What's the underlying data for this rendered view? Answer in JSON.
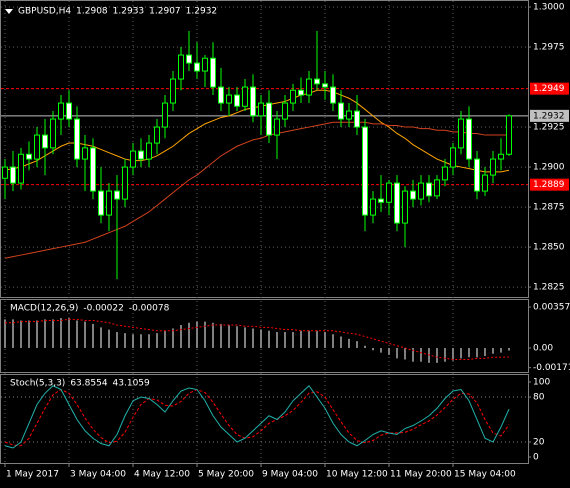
{
  "chart_data": [
    {
      "type": "candlestick",
      "title": "GBPUSD,H4",
      "grid": true,
      "categories": [
        "1 May 2017",
        null,
        null,
        null,
        null,
        null,
        null,
        null,
        "3 May 04:00",
        null,
        null,
        null,
        null,
        null,
        null,
        null,
        "4 May 12:00",
        null,
        null,
        null,
        null,
        null,
        null,
        null,
        "5 May 20:00",
        null,
        null,
        null,
        null,
        null,
        null,
        null,
        "9 May 04:00",
        null,
        null,
        null,
        null,
        null,
        null,
        null,
        "10 May 12:00",
        null,
        null,
        null,
        null,
        null,
        null,
        null,
        "11 May 20:00",
        null,
        null,
        null,
        null,
        null,
        null,
        null,
        "15 May 04:00",
        null,
        null,
        null,
        null,
        null,
        null,
        null
      ],
      "open": [
        1.2893,
        1.29,
        1.289,
        1.2908,
        1.2905,
        1.292,
        1.2912,
        1.293,
        1.294,
        1.293,
        1.2905,
        1.2912,
        1.2885,
        1.287,
        1.2885,
        1.288,
        1.29,
        1.291,
        1.2905,
        1.2915,
        1.2925,
        1.294,
        1.2955,
        1.297,
        1.2965,
        1.296,
        1.2968,
        1.295,
        1.294,
        1.2945,
        1.2938,
        1.295,
        1.2932,
        1.294,
        1.292,
        1.293,
        1.294,
        1.2948,
        1.2945,
        1.2955,
        1.2952,
        1.295,
        1.294,
        1.293,
        1.2935,
        1.2925,
        1.287,
        1.288,
        1.2878,
        1.289,
        1.2865,
        1.2885,
        1.288,
        1.289,
        1.2882,
        1.2892,
        1.29,
        1.2912,
        1.293,
        1.2905,
        1.2885,
        1.2895,
        1.2905,
        1.2908
      ],
      "high": [
        1.2905,
        1.291,
        1.2912,
        1.2916,
        1.2925,
        1.293,
        1.2935,
        1.2945,
        1.2948,
        1.2938,
        1.292,
        1.2918,
        1.29,
        1.289,
        1.2895,
        1.2905,
        1.2915,
        1.2918,
        1.292,
        1.293,
        1.2945,
        1.296,
        1.2975,
        1.2985,
        1.2978,
        1.297,
        1.2978,
        1.2962,
        1.295,
        1.295,
        1.2955,
        1.2958,
        1.2945,
        1.2948,
        1.2935,
        1.2945,
        1.2952,
        1.2956,
        1.296,
        1.2985,
        1.296,
        1.2958,
        1.2948,
        1.294,
        1.2945,
        1.293,
        1.2885,
        1.2895,
        1.2892,
        1.2895,
        1.2888,
        1.2892,
        1.2895,
        1.2895,
        1.2895,
        1.2905,
        1.2915,
        1.2935,
        1.2938,
        1.291,
        1.29,
        1.291,
        1.2918,
        1.2933
      ],
      "low": [
        1.288,
        1.2885,
        1.2886,
        1.2898,
        1.29,
        1.2895,
        1.2908,
        1.292,
        1.2925,
        1.29,
        1.2885,
        1.288,
        1.2865,
        1.286,
        1.283,
        1.2875,
        1.2895,
        1.29,
        1.29,
        1.2908,
        1.2918,
        1.2935,
        1.2948,
        1.296,
        1.2955,
        1.295,
        1.2945,
        1.2935,
        1.2932,
        1.2935,
        1.2935,
        1.2928,
        1.292,
        1.2915,
        1.2905,
        1.2925,
        1.2935,
        1.294,
        1.294,
        1.2948,
        1.2942,
        1.2935,
        1.2925,
        1.2925,
        1.292,
        1.286,
        1.2865,
        1.2872,
        1.287,
        1.286,
        1.285,
        1.2875,
        1.2876,
        1.2878,
        1.288,
        1.2888,
        1.2895,
        1.2908,
        1.29,
        1.288,
        1.2882,
        1.289,
        1.2898,
        1.2907
      ],
      "close": [
        1.29,
        1.289,
        1.2908,
        1.2905,
        1.292,
        1.2912,
        1.293,
        1.294,
        1.293,
        1.2905,
        1.2912,
        1.2885,
        1.287,
        1.2885,
        1.288,
        1.29,
        1.291,
        1.2905,
        1.2915,
        1.2925,
        1.294,
        1.2955,
        1.297,
        1.2965,
        1.296,
        1.2968,
        1.295,
        1.294,
        1.2945,
        1.2938,
        1.295,
        1.2932,
        1.294,
        1.292,
        1.293,
        1.294,
        1.2948,
        1.2945,
        1.2955,
        1.2952,
        1.295,
        1.294,
        1.293,
        1.2935,
        1.2925,
        1.287,
        1.288,
        1.2878,
        1.289,
        1.2865,
        1.2885,
        1.288,
        1.289,
        1.2882,
        1.2892,
        1.29,
        1.2912,
        1.293,
        1.2905,
        1.2885,
        1.2895,
        1.2905,
        1.2908,
        1.2932
      ],
      "color": "#00ff00",
      "bull_fill": "#000000",
      "bear_fill": "#ffffff",
      "series": [
        {
          "color": "#ffa500",
          "values": [
            1.2898,
            1.2899,
            1.29,
            1.2902,
            1.2904,
            1.2907,
            1.291,
            1.2913,
            1.2915,
            1.2915,
            1.2914,
            1.2913,
            1.2911,
            1.2909,
            1.2907,
            1.2905,
            1.2904,
            1.2904,
            1.2905,
            1.2907,
            1.291,
            1.2913,
            1.2917,
            1.2921,
            1.2924,
            1.2927,
            1.2929,
            1.2931,
            1.2932,
            1.2934,
            1.2936,
            1.2937,
            1.2938,
            1.2939,
            1.294,
            1.2941,
            1.2943,
            1.2945,
            1.2946,
            1.2948,
            1.2948,
            1.2947,
            1.2945,
            1.2943,
            1.294,
            1.2936,
            1.2932,
            1.2928,
            1.2925,
            1.2921,
            1.2918,
            1.2914,
            1.2911,
            1.2908,
            1.2905,
            1.2903,
            1.2901,
            1.29,
            1.2899,
            1.2898,
            1.2897,
            1.2897,
            1.2897,
            1.2898
          ]
        },
        {
          "color": "#d2421e",
          "values": [
            1.2843,
            1.2844,
            1.2845,
            1.2846,
            1.2847,
            1.2848,
            1.2849,
            1.285,
            1.2851,
            1.2852,
            1.2853,
            1.2855,
            1.2857,
            1.2859,
            1.2861,
            1.2863,
            1.2866,
            1.2869,
            1.2872,
            1.2876,
            1.288,
            1.2884,
            1.2888,
            1.2892,
            1.2895,
            1.2899,
            1.2903,
            1.2907,
            1.291,
            1.2913,
            1.2915,
            1.2917,
            1.2918,
            1.292,
            1.2921,
            1.2922,
            1.2923,
            1.2924,
            1.2925,
            1.2926,
            1.2927,
            1.2928,
            1.2928,
            1.2928,
            1.2928,
            1.2928,
            1.2927,
            1.2927,
            1.2926,
            1.2926,
            1.2925,
            1.2925,
            1.2924,
            1.2924,
            1.2923,
            1.2923,
            1.2922,
            1.2922,
            1.2921,
            1.2921,
            1.292,
            1.292,
            1.292,
            1.292
          ]
        }
      ],
      "levels": [
        {
          "value": 1.2949,
          "color": "#ff0000",
          "text_color": "#ffffff",
          "dashed": true
        },
        {
          "value": 1.2889,
          "color": "#ff0000",
          "text_color": "#ffffff",
          "dashed": true
        },
        {
          "value": 1.2932,
          "color": "#c0c0c0",
          "text_color": "#000000",
          "dashed": false
        }
      ],
      "ylim": [
        1.28188,
        1.30044
      ],
      "yticks": [
        {
          "value": 1.3,
          "label": "1.3000"
        },
        1.2975,
        1.2925,
        {
          "value": 1.29,
          "label": "1.2900"
        },
        1.2875,
        {
          "value": 1.285,
          "label": "1.2850"
        },
        1.2825
      ]
    },
    {
      "type": "macd",
      "title": "MACD(12,26,9)",
      "histogram": {
        "color": "#ffffff",
        "values": [
          0.0025,
          0.0025,
          0.0024,
          0.0024,
          0.0024,
          0.0025,
          0.0025,
          0.0026,
          0.0026,
          0.0024,
          0.0023,
          0.0021,
          0.0018,
          0.0016,
          0.0014,
          0.0013,
          0.0012,
          0.0012,
          0.0012,
          0.0013,
          0.0015,
          0.0017,
          0.002,
          0.0022,
          0.0023,
          0.0023,
          0.0022,
          0.0021,
          0.002,
          0.0019,
          0.0018,
          0.0017,
          0.0016,
          0.0015,
          0.0014,
          0.0014,
          0.0014,
          0.0015,
          0.0015,
          0.0015,
          0.0014,
          0.0012,
          0.001,
          0.0008,
          0.0006,
          0.0002,
          -0.0002,
          -0.0004,
          -0.0006,
          -0.0009,
          -0.001,
          -0.0012,
          -0.0012,
          -0.0013,
          -0.0013,
          -0.0012,
          -0.0011,
          -0.0009,
          -0.0008,
          -0.0008,
          -0.0007,
          -0.0005,
          -0.0004,
          -0.00022
        ]
      },
      "signal": {
        "color": "#ff0000",
        "values": [
          0.0022,
          0.0022,
          0.0023,
          0.0023,
          0.0023,
          0.0024,
          0.0024,
          0.0024,
          0.0025,
          0.0025,
          0.0024,
          0.0024,
          0.0023,
          0.0022,
          0.002,
          0.0019,
          0.0018,
          0.0017,
          0.0016,
          0.0015,
          0.0015,
          0.0015,
          0.0016,
          0.0017,
          0.0018,
          0.0019,
          0.002,
          0.002,
          0.002,
          0.002,
          0.0019,
          0.0019,
          0.0018,
          0.0018,
          0.0017,
          0.0016,
          0.0016,
          0.0015,
          0.0015,
          0.0015,
          0.0015,
          0.0015,
          0.0014,
          0.0013,
          0.0012,
          0.001,
          0.0008,
          0.0006,
          0.0004,
          0.0002,
          0.0,
          -0.0002,
          -0.0004,
          -0.0006,
          -0.0008,
          -0.0009,
          -0.001,
          -0.001,
          -0.001,
          -0.0009,
          -0.0009,
          -0.0008,
          -0.0008,
          -0.00078
        ]
      },
      "ylim": [
        -0.00209,
        0.00427
      ],
      "yticks": [
        0.00357,
        {
          "value": 0,
          "label": "0.00"
        },
        -0.00171
      ]
    },
    {
      "type": "stochastic",
      "title": "Stoch(5,3,3)",
      "main": {
        "color": "#20b2aa",
        "values": [
          15,
          12,
          20,
          45,
          70,
          85,
          95,
          90,
          70,
          50,
          35,
          25,
          18,
          15,
          30,
          55,
          75,
          80,
          78,
          70,
          60,
          75,
          88,
          92,
          90,
          75,
          55,
          40,
          30,
          20,
          25,
          35,
          45,
          55,
          50,
          60,
          75,
          85,
          95,
          80,
          65,
          45,
          30,
          20,
          15,
          22,
          30,
          35,
          32,
          30,
          38,
          42,
          48,
          55,
          65,
          78,
          88,
          90,
          75,
          50,
          25,
          20,
          40,
          63.8554
        ]
      },
      "signal": {
        "color": "#ff0000",
        "values": [
          20,
          16,
          15,
          25,
          45,
          65,
          83,
          90,
          85,
          70,
          52,
          37,
          26,
          19,
          21,
          33,
          53,
          70,
          78,
          76,
          69,
          68,
          74,
          85,
          90,
          86,
          73,
          57,
          42,
          30,
          25,
          27,
          35,
          45,
          50,
          55,
          62,
          73,
          85,
          87,
          80,
          63,
          47,
          32,
          22,
          19,
          22,
          29,
          32,
          32,
          33,
          37,
          43,
          48,
          56,
          66,
          77,
          85,
          84,
          72,
          50,
          32,
          28,
          43.1059
        ]
      },
      "levels": [
        80,
        20
      ],
      "ylim": [
        -8,
        110.7
      ],
      "yticks": [
        100,
        80,
        20,
        0
      ]
    }
  ]
}
